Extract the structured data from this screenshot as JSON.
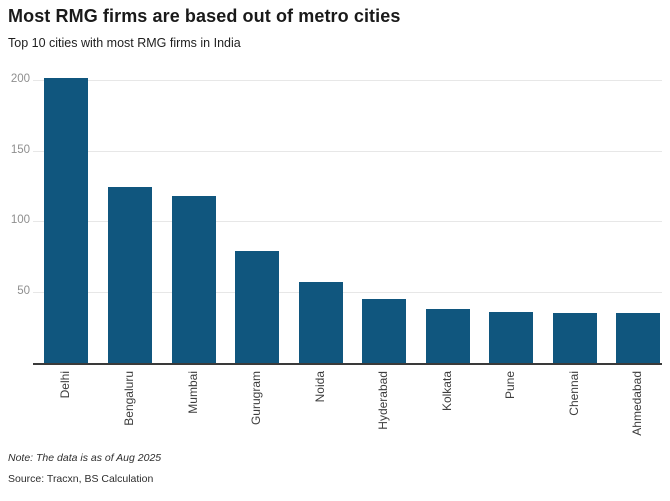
{
  "chart_data": {
    "type": "bar",
    "title": "Most RMG firms are based out of metro cities",
    "subtitle": "Top 10 cities with most RMG firms in India",
    "categories": [
      "Delhi",
      "Bengaluru",
      "Mumbai",
      "Gurugram",
      "Noida",
      "Hyderabad",
      "Kolkata",
      "Pune",
      "Chennai",
      "Ahmedabad"
    ],
    "values": [
      201,
      124,
      118,
      79,
      57,
      45,
      38,
      36,
      35,
      35
    ],
    "yticks": [
      50,
      100,
      150,
      200
    ],
    "ylim": [
      0,
      210
    ],
    "xlabel": "",
    "ylabel": "",
    "grid": "horizontal",
    "legend": "none",
    "bar_color": "#10567E",
    "note": "Note: The data is as of Aug 2025",
    "source": "Source: Tracxn, BS Calculation"
  }
}
